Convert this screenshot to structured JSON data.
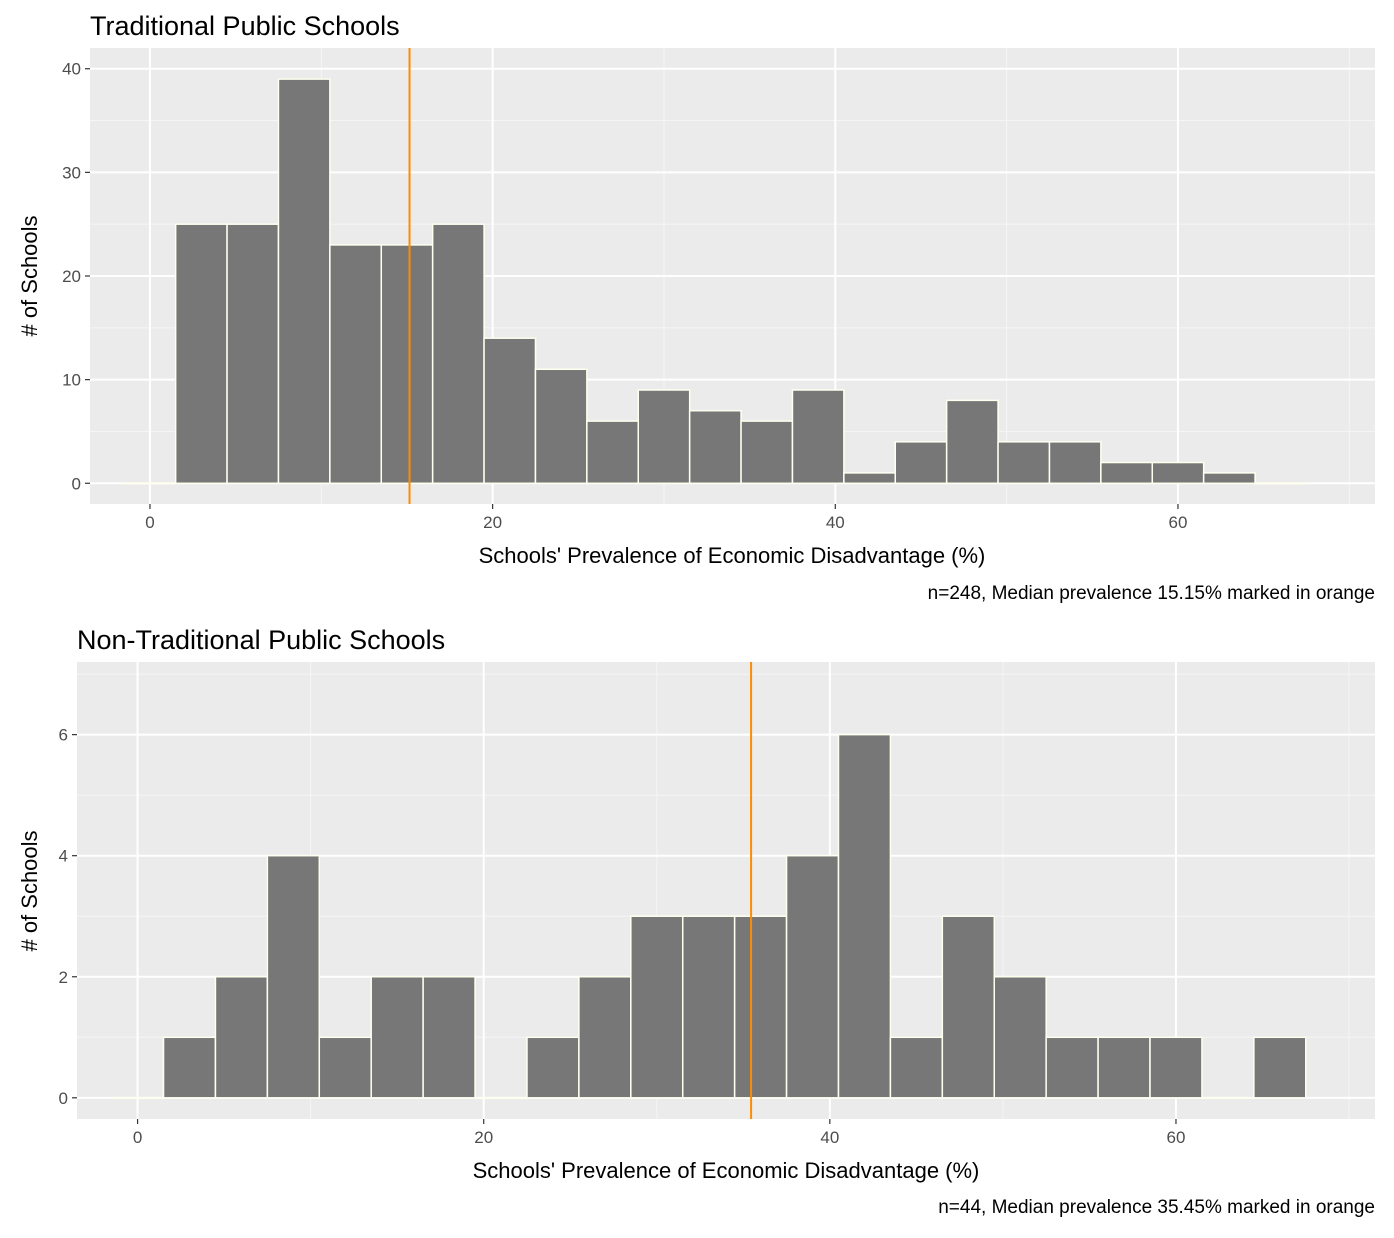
{
  "chart_data": [
    {
      "type": "bar",
      "subtype": "histogram",
      "title": "Traditional Public Schools",
      "xlabel": "Schools' Prevalence of Economic Disadvantage (%)",
      "ylabel": "# of Schools",
      "caption": "n=248, Median prevalence 15.15% marked in orange",
      "xlim": [
        -3.5,
        71.5
      ],
      "ylim": [
        -2,
        42
      ],
      "x_ticks": [
        0,
        20,
        40,
        60
      ],
      "y_ticks": [
        0,
        10,
        20,
        30,
        40
      ],
      "bin_width": 3,
      "bin_centers": [
        0,
        3,
        6,
        9,
        12,
        15,
        18,
        21,
        24,
        27,
        30,
        33,
        36,
        39,
        42,
        45,
        48,
        51,
        54,
        57,
        60,
        63,
        66
      ],
      "counts": [
        0,
        25,
        25,
        39,
        23,
        23,
        25,
        14,
        11,
        6,
        9,
        7,
        6,
        9,
        1,
        4,
        8,
        4,
        4,
        2,
        2,
        1,
        0
      ],
      "median_line_x": 15.15,
      "median_line_color": "#ff8c00",
      "bar_color": "#777777",
      "bar_outline_color": "#fffff0",
      "panel_background": "#ebebeb",
      "grid": true
    },
    {
      "type": "bar",
      "subtype": "histogram",
      "title": "Non-Traditional Public Schools",
      "xlabel": "Schools' Prevalence of Economic Disadvantage (%)",
      "ylabel": "# of Schools",
      "caption": "n=44, Median prevalence 35.45% marked in orange",
      "xlim": [
        -3.5,
        71.5
      ],
      "ylim": [
        -0.35,
        7.2
      ],
      "x_ticks": [
        0,
        20,
        40,
        60
      ],
      "y_ticks": [
        0,
        2,
        4,
        6
      ],
      "bin_width": 3,
      "bin_centers": [
        0,
        3,
        6,
        9,
        12,
        15,
        18,
        21,
        24,
        27,
        30,
        33,
        36,
        39,
        42,
        45,
        48,
        51,
        54,
        57,
        60,
        63,
        66
      ],
      "counts": [
        0,
        1,
        2,
        4,
        1,
        2,
        2,
        0,
        1,
        2,
        3,
        3,
        3,
        4,
        6,
        1,
        3,
        2,
        1,
        1,
        1,
        0,
        1
      ],
      "median_line_x": 35.45,
      "median_line_color": "#ff8c00",
      "bar_color": "#777777",
      "bar_outline_color": "#fffff0",
      "panel_background": "#ebebeb",
      "grid": true
    }
  ]
}
